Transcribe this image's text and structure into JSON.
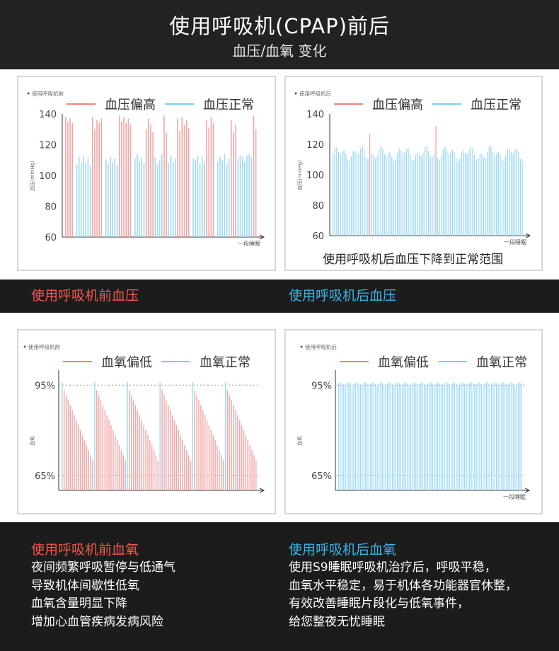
{
  "header": {
    "title": "使用呼吸机(CPAP)前后",
    "subtitle": "血压/血氧 变化"
  },
  "colors": {
    "high_or_low": "#f2a5a5",
    "normal": "#9fd9f2",
    "legend_red": "#f0584f",
    "legend_blue": "#46c0ec"
  },
  "captions": {
    "bp_before": "使用呼吸机前血压",
    "bp_after": "使用呼吸机后血压",
    "spo2_before": "使用呼吸机前血氧",
    "spo2_after": "使用呼吸机后血氧"
  },
  "descriptions": {
    "before": [
      "夜间频繁呼吸暂停与低通气",
      "导致机体间歇性低氧",
      "血氧含量明显下降",
      "增加心血管疾病发病风险"
    ],
    "after": [
      "使用S9睡眠呼吸机治疗后，呼吸平稳，",
      "血氧水平稳定，易于机体各功能器官休整，",
      "有效改善睡眠片段化与低氧事件，",
      "给您整夜无忧睡眠"
    ]
  },
  "chart_data": [
    {
      "type": "bar",
      "title": "使用呼吸机前",
      "ylabel": "血压(mmHg)",
      "xlabel": "一段睡眠",
      "ylim": [
        60,
        140
      ],
      "yticks": [
        "140",
        "120",
        "100",
        "80",
        "60"
      ],
      "legend": [
        "血压偏高",
        "血压正常"
      ],
      "series": [
        {
          "name": "血压偏高",
          "clusters": [
            [
              0,
              4,
              [
                138,
                135,
                137,
                134,
                131
              ]
            ],
            [
              12,
              5,
              [
                138,
                130,
                136,
                134,
                137
              ]
            ],
            [
              24,
              6,
              [
                139,
                135,
                138,
                134,
                137,
                133
              ]
            ],
            [
              36,
              4,
              [
                130,
                137,
                133,
                128
              ]
            ],
            [
              44,
              2,
              [
                139,
                128
              ]
            ],
            [
              50,
              6,
              [
                137,
                129,
                138,
                133,
                136,
                131
              ]
            ],
            [
              63,
              4,
              [
                136,
                131,
                138,
                134
              ]
            ],
            [
              74,
              3,
              [
                136,
                128,
                133
              ]
            ],
            [
              84,
              2,
              [
                139,
                130
              ]
            ]
          ]
        },
        {
          "name": "血压正常",
          "clusters": [
            [
              5,
              7,
              [
                107,
                112,
                109,
                113,
                108,
                111,
                106
              ]
            ],
            [
              18,
              6,
              [
                110,
                108,
                112,
                109,
                111,
                107
              ]
            ],
            [
              31,
              5,
              [
                111,
                114,
                109,
                112,
                108
              ]
            ],
            [
              40,
              4,
              [
                112,
                107,
                110,
                114
              ]
            ],
            [
              46,
              4,
              [
                108,
                113,
                109,
                111
              ]
            ],
            [
              57,
              6,
              [
                111,
                110,
                113,
                108,
                112,
                109
              ]
            ],
            [
              68,
              6,
              [
                109,
                112,
                110,
                114,
                108,
                111
              ]
            ],
            [
              77,
              7,
              [
                111,
                113,
                112,
                109,
                113,
                114,
                112
              ]
            ]
          ]
        }
      ],
      "n_bars": 86
    },
    {
      "type": "bar",
      "title": "使用呼吸机后",
      "ylabel": "血压(mmHg)",
      "xlabel": "一段睡眠",
      "ylim": [
        60,
        140
      ],
      "yticks": [
        "140",
        "120",
        "100",
        "80",
        "60"
      ],
      "legend": [
        "血压偏高",
        "血压正常"
      ],
      "annotation": "使用呼吸机后血压下降到正常范围",
      "normal_range": [
        108,
        120
      ],
      "spikes": [
        {
          "i": 20,
          "v": 127
        },
        {
          "i": 56,
          "v": 132
        }
      ],
      "n_bars": 104
    },
    {
      "type": "bar",
      "title": "使用呼吸机前",
      "ylabel": "血氧",
      "xlabel": "",
      "ylim": [
        60,
        100
      ],
      "yticks": [
        "95%",
        "65%"
      ],
      "refs": [
        95,
        65
      ],
      "legend": [
        "血氧偏低",
        "血氧正常"
      ],
      "cycles": 6,
      "cycle_start": 95,
      "cycle_end": 70,
      "n_bars": 96
    },
    {
      "type": "bar",
      "title": "使用呼吸机后",
      "ylabel": "血氧",
      "xlabel": "一段睡眠",
      "ylim": [
        60,
        100
      ],
      "yticks": [
        "95%",
        "65%"
      ],
      "refs": [
        95,
        65
      ],
      "legend": [
        "血氧偏低",
        "血氧正常"
      ],
      "value_range": [
        95,
        96
      ],
      "n_bars": 110
    }
  ]
}
